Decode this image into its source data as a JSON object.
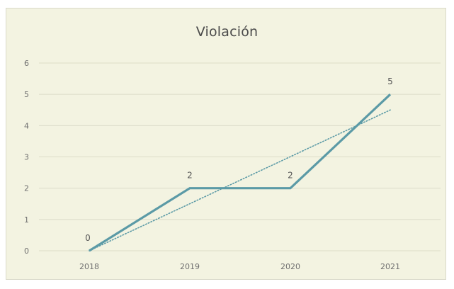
{
  "chart_data": {
    "type": "line",
    "title": "Violación",
    "xlabel": "",
    "ylabel": "",
    "categories": [
      "2018",
      "2019",
      "2020",
      "2021"
    ],
    "series": [
      {
        "values": [
          0,
          2,
          2,
          5
        ],
        "data_labels": [
          "0",
          "2",
          "2",
          "5"
        ]
      }
    ],
    "trendline": {
      "type": "linear",
      "style": "dotted"
    },
    "ylim": [
      0,
      6
    ],
    "yticks": [
      "0",
      "1",
      "2",
      "3",
      "4",
      "5",
      "6"
    ],
    "grid": "horizontal",
    "legend": "none",
    "colors": {
      "background": "#f3f3e1",
      "line": "#5b9aa6",
      "trendline": "#5b9aa6",
      "gridline": "#dcdcc8"
    }
  }
}
